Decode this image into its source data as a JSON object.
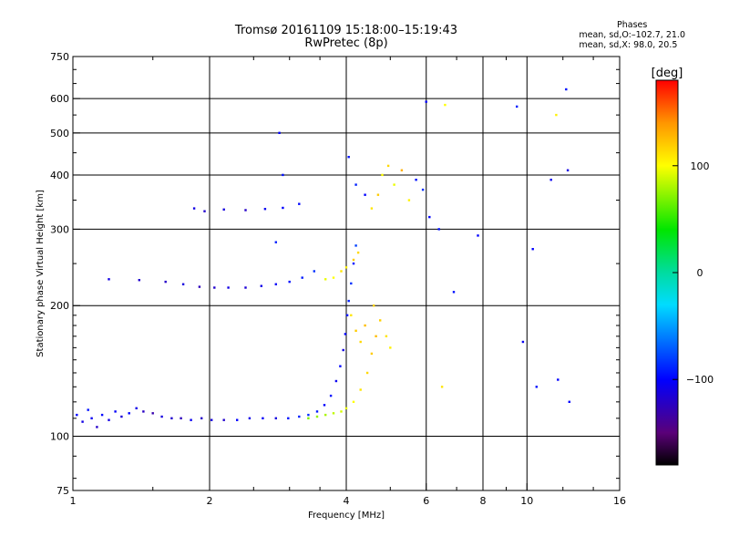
{
  "header": {
    "title": "Tromsø 20161109 15:18:00–15:19:43",
    "subtitle": "RwPretec (8p)"
  },
  "phases": {
    "heading": "Phases",
    "line_o": "mean, sd,O:–102.7, 21.0",
    "line_x": "mean, sd,X: 98.0, 20.5"
  },
  "colorbar": {
    "label": "[deg]",
    "range": [
      -180,
      180
    ],
    "ticks": [
      {
        "value": 100,
        "label": "100"
      },
      {
        "value": 0,
        "label": "0"
      },
      {
        "value": -100,
        "label": "−100"
      }
    ]
  },
  "chart_data": {
    "type": "scatter",
    "title": "Tromsø 20161109 15:18:00–15:19:43",
    "subtitle": "RwPretec (8p)",
    "xlabel": "Frequency [MHz]",
    "ylabel": "Stationary phase Virtual Height [km]",
    "x_scale": "log",
    "y_scale": "log",
    "xlim": [
      1,
      16
    ],
    "ylim": [
      75,
      750
    ],
    "x_ticks": [
      {
        "value": 1,
        "label": "1"
      },
      {
        "value": 2,
        "label": "2"
      },
      {
        "value": 4,
        "label": "4"
      },
      {
        "value": 6,
        "label": "6"
      },
      {
        "value": 8,
        "label": "8"
      },
      {
        "value": 10,
        "label": "10"
      },
      {
        "value": 16,
        "label": "16"
      }
    ],
    "y_ticks": [
      {
        "value": 75,
        "label": "75"
      },
      {
        "value": 100,
        "label": "100"
      },
      {
        "value": 200,
        "label": "200"
      },
      {
        "value": 300,
        "label": "300"
      },
      {
        "value": 400,
        "label": "400"
      },
      {
        "value": 500,
        "label": "500"
      },
      {
        "value": 600,
        "label": "600"
      },
      {
        "value": 750,
        "label": "750"
      }
    ],
    "x_grid": [
      2,
      4,
      6,
      8,
      10
    ],
    "y_grid": [
      100,
      200,
      300,
      400,
      500,
      600
    ],
    "color_scale": "phase [deg], -180 to 180",
    "points": [
      [
        1.02,
        112,
        -100
      ],
      [
        1.05,
        108,
        -110
      ],
      [
        1.08,
        115,
        -95
      ],
      [
        1.1,
        110,
        -105
      ],
      [
        1.13,
        105,
        -120
      ],
      [
        1.16,
        112,
        -98
      ],
      [
        1.2,
        109,
        -110
      ],
      [
        1.24,
        114,
        -102
      ],
      [
        1.28,
        111,
        -115
      ],
      [
        1.33,
        113,
        -100
      ],
      [
        1.38,
        116,
        -108
      ],
      [
        1.43,
        114,
        -122
      ],
      [
        1.5,
        113,
        -130
      ],
      [
        1.57,
        111,
        -112
      ],
      [
        1.65,
        110,
        -118
      ],
      [
        1.73,
        110,
        -125
      ],
      [
        1.82,
        109,
        -105
      ],
      [
        1.92,
        110,
        -120
      ],
      [
        2.02,
        109,
        -112
      ],
      [
        2.15,
        109,
        -118
      ],
      [
        2.3,
        109,
        -100
      ],
      [
        2.45,
        110,
        -108
      ],
      [
        2.62,
        110,
        -102
      ],
      [
        2.8,
        110,
        -112
      ],
      [
        2.98,
        110,
        -95
      ],
      [
        3.15,
        111,
        -90
      ],
      [
        3.3,
        112,
        -85
      ],
      [
        3.45,
        114,
        -92
      ],
      [
        3.58,
        118,
        -100
      ],
      [
        3.7,
        124,
        -95
      ],
      [
        3.8,
        134,
        -105
      ],
      [
        3.88,
        145,
        -98
      ],
      [
        3.94,
        158,
        -110
      ],
      [
        3.98,
        172,
        -100
      ],
      [
        4.02,
        190,
        -95
      ],
      [
        4.05,
        205,
        -90
      ],
      [
        4.1,
        225,
        -85
      ],
      [
        4.15,
        250,
        -95
      ],
      [
        4.2,
        275,
        -80
      ],
      [
        1.2,
        230,
        -110
      ],
      [
        1.4,
        229,
        -118
      ],
      [
        1.6,
        227,
        -120
      ],
      [
        1.75,
        224,
        -112
      ],
      [
        1.9,
        221,
        -125
      ],
      [
        2.05,
        220,
        -118
      ],
      [
        2.2,
        220,
        -110
      ],
      [
        2.4,
        220,
        -115
      ],
      [
        2.6,
        222,
        -108
      ],
      [
        2.8,
        224,
        -102
      ],
      [
        3.0,
        227,
        -96
      ],
      [
        3.2,
        232,
        -92
      ],
      [
        3.4,
        240,
        -85
      ],
      [
        1.85,
        335,
        -110
      ],
      [
        1.95,
        330,
        -118
      ],
      [
        2.15,
        333,
        -112
      ],
      [
        2.4,
        332,
        -120
      ],
      [
        2.65,
        334,
        -105
      ],
      [
        2.9,
        336,
        -100
      ],
      [
        3.15,
        343,
        -98
      ],
      [
        3.3,
        110,
        70
      ],
      [
        3.45,
        111,
        75
      ],
      [
        3.6,
        112,
        80
      ],
      [
        3.75,
        113,
        85
      ],
      [
        3.9,
        114,
        90
      ],
      [
        4.0,
        116,
        95
      ],
      [
        4.15,
        120,
        100
      ],
      [
        4.3,
        128,
        110
      ],
      [
        4.45,
        140,
        115
      ],
      [
        4.55,
        155,
        120
      ],
      [
        4.65,
        170,
        125
      ],
      [
        4.75,
        185,
        118
      ],
      [
        4.9,
        170,
        110
      ],
      [
        5.0,
        160,
        105
      ],
      [
        3.6,
        230,
        95
      ],
      [
        3.75,
        232,
        100
      ],
      [
        3.9,
        240,
        110
      ],
      [
        4.0,
        245,
        105
      ],
      [
        4.15,
        255,
        120
      ],
      [
        4.25,
        265,
        115
      ],
      [
        4.1,
        190,
        110
      ],
      [
        4.2,
        175,
        120
      ],
      [
        4.3,
        165,
        115
      ],
      [
        4.4,
        180,
        125
      ],
      [
        4.6,
        200,
        118
      ],
      [
        4.05,
        440,
        -95
      ],
      [
        4.2,
        380,
        -90
      ],
      [
        4.4,
        360,
        -100
      ],
      [
        4.55,
        335,
        110
      ],
      [
        4.7,
        360,
        120
      ],
      [
        4.8,
        400,
        100
      ],
      [
        4.95,
        420,
        115
      ],
      [
        5.1,
        380,
        95
      ],
      [
        5.3,
        410,
        130
      ],
      [
        5.5,
        350,
        105
      ],
      [
        5.7,
        390,
        -95
      ],
      [
        5.9,
        370,
        -85
      ],
      [
        6.1,
        320,
        -100
      ],
      [
        6.4,
        300,
        -95
      ],
      [
        6.6,
        580,
        100
      ],
      [
        6.0,
        590,
        -100
      ],
      [
        2.85,
        500,
        -100
      ],
      [
        2.9,
        400,
        -95
      ],
      [
        2.8,
        280,
        -90
      ],
      [
        6.9,
        215,
        -95
      ],
      [
        7.8,
        290,
        -100
      ],
      [
        9.5,
        575,
        -90
      ],
      [
        9.8,
        165,
        -105
      ],
      [
        10.3,
        270,
        -100
      ],
      [
        10.5,
        130,
        -95
      ],
      [
        11.3,
        390,
        -105
      ],
      [
        11.7,
        135,
        -100
      ],
      [
        12.2,
        630,
        -95
      ],
      [
        12.3,
        410,
        -110
      ],
      [
        12.4,
        120,
        -100
      ],
      [
        6.5,
        130,
        110
      ],
      [
        11.6,
        550,
        105
      ]
    ]
  }
}
